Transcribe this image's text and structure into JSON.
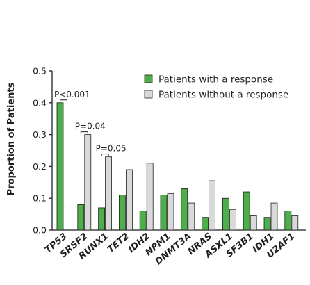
{
  "chart_data": {
    "type": "bar",
    "title": "",
    "xlabel": "",
    "ylabel": "Proportion of Patients",
    "ylim": [
      0,
      0.5
    ],
    "yticks": [
      "0.0",
      "0.1",
      "0.2",
      "0.3",
      "0.4",
      "0.5"
    ],
    "ytick_values": [
      0,
      0.1,
      0.2,
      0.3,
      0.4,
      0.5
    ],
    "grid": false,
    "legend_position": "top-right",
    "categories": [
      "TP53",
      "SRSF2",
      "RUNX1",
      "TET2",
      "IDH2",
      "NPM1",
      "DNMT3A",
      "NRAS",
      "ASXL1",
      "SF3B1",
      "IDH1",
      "U2AF1"
    ],
    "series": [
      {
        "name": "Patients with a response",
        "color": "#4daf4a",
        "values": [
          0.4,
          0.08,
          0.07,
          0.11,
          0.06,
          0.11,
          0.13,
          0.04,
          0.1,
          0.12,
          0.04,
          0.06
        ]
      },
      {
        "name": "Patients without a response",
        "color": "#d9d9d9",
        "values": [
          0.0,
          0.3,
          0.23,
          0.19,
          0.21,
          0.115,
          0.085,
          0.155,
          0.065,
          0.045,
          0.085,
          0.045
        ]
      }
    ],
    "annotations": [
      {
        "category": "TP53",
        "text": "P<0.001"
      },
      {
        "category": "SRSF2",
        "text": "P=0.04"
      },
      {
        "category": "RUNX1",
        "text": "P=0.05"
      }
    ]
  }
}
